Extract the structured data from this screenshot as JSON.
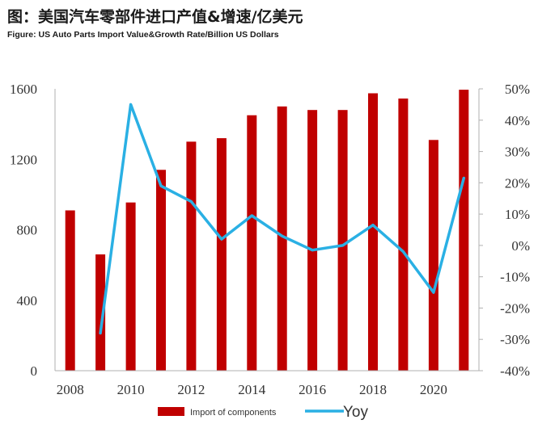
{
  "header": {
    "title": "图：美国汽车零部件进口产值&增速/亿美元",
    "subtitle": "Figure: US Auto Parts Import Value&Growth Rate/Billion US Dollars"
  },
  "chart_data": {
    "type": "bar",
    "title": "图：美国汽车零部件进口产值&增速/亿美元",
    "subtitle": "Figure: US Auto Parts Import Value&Growth Rate/Billion US Dollars",
    "x": [
      2008,
      2009,
      2010,
      2011,
      2012,
      2013,
      2014,
      2015,
      2016,
      2017,
      2018,
      2019,
      2020,
      2021
    ],
    "x_ticks": [
      "2008",
      "2010",
      "2012",
      "2014",
      "2016",
      "2018",
      "2020"
    ],
    "y_left": {
      "ylim": [
        0,
        1600
      ],
      "ticks": [
        "0",
        "400",
        "800",
        "1200",
        "1600"
      ]
    },
    "y_right": {
      "ylim": [
        -40,
        50
      ],
      "ticks": [
        "-40%",
        "-30%",
        "-20%",
        "-10%",
        "0%",
        "10%",
        "20%",
        "30%",
        "40%",
        "50%"
      ]
    },
    "series": [
      {
        "name": "Import of components",
        "kind": "bar",
        "axis": "left",
        "color": "#c00000",
        "values": [
          910,
          660,
          955,
          1140,
          1300,
          1320,
          1450,
          1500,
          1480,
          1480,
          1575,
          1545,
          1310,
          1595
        ]
      },
      {
        "name": "Yoy",
        "kind": "line",
        "axis": "right",
        "color": "#2ab0e4",
        "values": [
          null,
          -28,
          45,
          19,
          14,
          2,
          9.5,
          3,
          -1.5,
          0,
          6.5,
          -2,
          -15,
          21.5
        ]
      }
    ],
    "legend": {
      "placement": "bottom",
      "bar_label": "Import of components",
      "line_label": "Yoy"
    },
    "grid": false
  }
}
